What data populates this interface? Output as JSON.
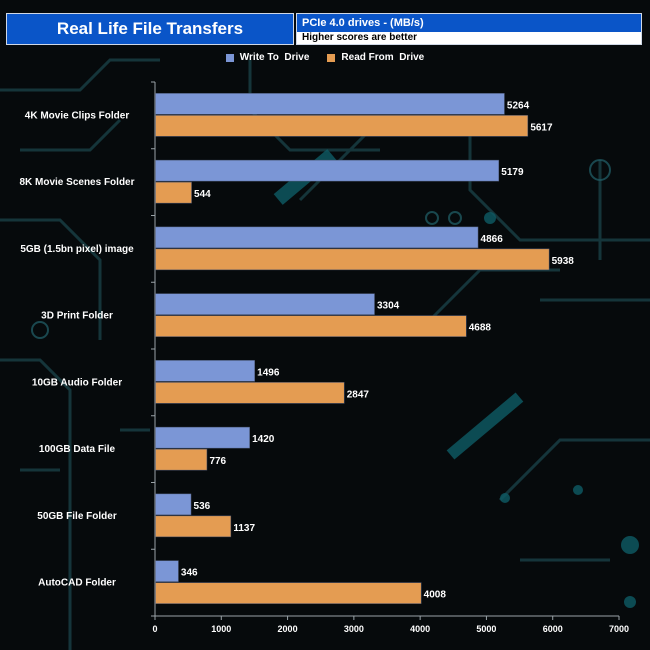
{
  "header": {
    "title": "Real Life File Transfers",
    "subtitle": "PCIe 4.0 drives - (MB/s)",
    "note": "Higher scores are better"
  },
  "colors": {
    "write": "#7b96d6",
    "read": "#e49c52",
    "title_bg": "#0a55c8",
    "text": "#ffffff"
  },
  "chart_data": {
    "type": "bar",
    "orientation": "horizontal",
    "title": "Real Life File Transfers",
    "subtitle": "PCIe 4.0 drives - (MB/s)",
    "categories": [
      "4K Movie Clips Folder",
      "8K Movie Scenes Folder",
      "5GB (1.5bn pixel) image",
      "3D Print Folder",
      "10GB Audio Folder",
      "100GB Data File",
      "50GB File Folder",
      "AutoCAD Folder"
    ],
    "series": [
      {
        "name": "Write To  Drive",
        "color": "#7b96d6",
        "values": [
          5264,
          5179,
          4866,
          3304,
          1496,
          1420,
          536,
          346
        ]
      },
      {
        "name": "Read From  Drive",
        "color": "#e49c52",
        "values": [
          5617,
          544,
          5938,
          4688,
          2847,
          776,
          1137,
          4008
        ]
      }
    ],
    "xlim": [
      0,
      7000
    ],
    "xticks": [
      "0",
      "1000",
      "2000",
      "3000",
      "4000",
      "5000",
      "6000",
      "7000"
    ],
    "xlabel": "",
    "ylabel": "",
    "legend": "top-center",
    "grid": false
  }
}
